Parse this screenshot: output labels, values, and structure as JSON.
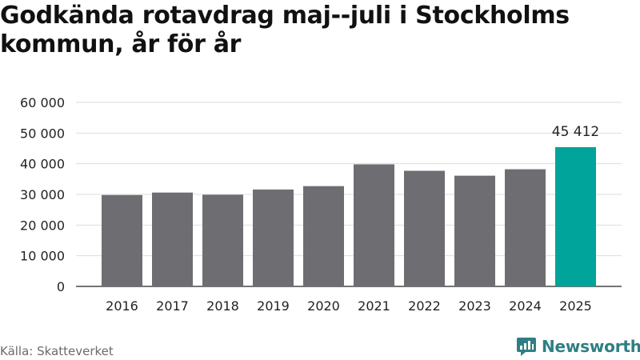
{
  "title": "Godkända rotavdrag maj--juli i Stockholms kommun, år för år",
  "source": "Källa: Skatteverket",
  "brand": "Newsworthy",
  "colors": {
    "bar": "#6e6d72",
    "highlight": "#00a49a",
    "grid": "#dddddd",
    "axis": "#222222",
    "brand": "#2e7f84"
  },
  "chart_data": {
    "type": "bar",
    "categories": [
      "2016",
      "2017",
      "2018",
      "2019",
      "2020",
      "2021",
      "2022",
      "2023",
      "2024",
      "2025"
    ],
    "values": [
      29800,
      30600,
      29900,
      31600,
      32700,
      39800,
      37700,
      36100,
      38200,
      45412
    ],
    "highlight_index": 9,
    "data_labels": [
      {
        "category": "2025",
        "text": "45 412"
      }
    ],
    "title": "Godkända rotavdrag maj--juli i Stockholms kommun, år för år",
    "xlabel": "",
    "ylabel": "",
    "ylim": [
      0,
      60000
    ],
    "yticks": [
      0,
      10000,
      20000,
      30000,
      40000,
      50000,
      60000
    ],
    "ytick_labels": [
      "0",
      "10 000",
      "20 000",
      "30 000",
      "40 000",
      "50 000",
      "60 000"
    ],
    "grid": true,
    "legend": "none"
  }
}
